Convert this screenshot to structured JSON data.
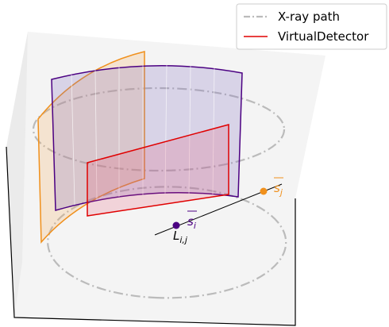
{
  "legend": {
    "items": [
      {
        "label": "X-ray path"
      },
      {
        "label": "VirtualDetector"
      }
    ]
  },
  "annotations": [
    {
      "base": "s",
      "subscript": "j"
    },
    {
      "base": "s",
      "subscript": "i"
    },
    {
      "base": "L",
      "subscript": "i,j"
    }
  ]
}
